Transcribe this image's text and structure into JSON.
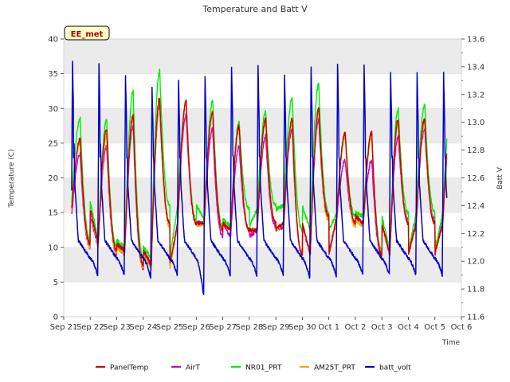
{
  "chart_data": {
    "type": "line",
    "title": "Temperature and Batt V",
    "xlabel": "Time",
    "ylabel": "Temperature (C)",
    "y2label": "Batt V",
    "badge": "EE_met",
    "xlim": [
      0,
      15
    ],
    "ylim": [
      0,
      40
    ],
    "y2lim": [
      11.6,
      13.6
    ],
    "x_tick_labels": [
      "Sep 21",
      "Sep 22",
      "Sep 23",
      "Sep 24",
      "Sep 25",
      "Sep 26",
      "Sep 27",
      "Sep 28",
      "Sep 29",
      "Sep 30",
      "Oct 1",
      "Oct 2",
      "Oct 3",
      "Oct 4",
      "Oct 5",
      "Oct 6"
    ],
    "y_ticks": [
      0,
      5,
      10,
      15,
      20,
      25,
      30,
      35,
      40
    ],
    "y2_ticks": [
      11.6,
      11.8,
      12.0,
      12.2,
      12.4,
      12.6,
      12.8,
      13.0,
      13.2,
      13.4,
      13.6
    ],
    "days": [
      "Sep 21",
      "Sep 22",
      "Sep 23",
      "Sep 24",
      "Sep 25",
      "Sep 26",
      "Sep 27",
      "Sep 28",
      "Sep 29",
      "Sep 30",
      "Oct 1",
      "Oct 2",
      "Oct 3",
      "Oct 4"
    ],
    "series": [
      {
        "name": "PanelTemp",
        "color": "#cc0000",
        "axis": "left",
        "daily_max": [
          25.5,
          27.0,
          29.0,
          31.5,
          31.0,
          29.5,
          27.5,
          28.5,
          28.5,
          30.0,
          26.5,
          26.5,
          28.5,
          28.5
        ],
        "daily_min": [
          15.5,
          10.5,
          9.5,
          7.5,
          13.5,
          13.5,
          12.5,
          12.5,
          13.5,
          9.0,
          14.5,
          13.5,
          9.0,
          13.5
        ]
      },
      {
        "name": "AirT",
        "color": "#cc00cc",
        "axis": "left",
        "daily_max": [
          23.5,
          24.5,
          27.5,
          30.5,
          29.0,
          27.0,
          24.5,
          26.0,
          27.0,
          28.5,
          22.5,
          22.5,
          26.0,
          27.0
        ],
        "daily_min": [
          14.5,
          10.0,
          9.0,
          7.0,
          13.5,
          13.5,
          11.5,
          12.5,
          13.0,
          9.0,
          14.0,
          13.5,
          9.0,
          14.0
        ]
      },
      {
        "name": "NR01_PRT",
        "color": "#00ee00",
        "axis": "left",
        "daily_max": [
          28.5,
          28.5,
          32.5,
          35.5,
          31.0,
          31.0,
          28.0,
          29.5,
          31.5,
          33.5,
          26.5,
          26.5,
          30.0,
          30.5
        ],
        "daily_min": [
          16.5,
          11.0,
          10.0,
          8.5,
          16.0,
          14.0,
          13.0,
          15.5,
          16.0,
          12.5,
          15.0,
          14.5,
          9.5,
          15.0
        ]
      },
      {
        "name": "AM25T_PRT",
        "color": "#ffa500",
        "axis": "left",
        "daily_max": [
          25.0,
          26.0,
          29.0,
          31.0,
          31.0,
          29.5,
          27.0,
          28.0,
          28.0,
          29.5,
          26.0,
          26.0,
          28.0,
          28.0
        ],
        "daily_min": [
          15.5,
          10.0,
          9.0,
          7.0,
          13.0,
          13.5,
          12.5,
          12.5,
          13.5,
          9.0,
          14.0,
          13.0,
          9.0,
          13.5
        ]
      },
      {
        "name": "batt_volt",
        "color": "#0000cc",
        "axis": "right",
        "daily_max": [
          13.45,
          13.42,
          13.33,
          13.25,
          13.3,
          13.33,
          13.4,
          13.4,
          13.34,
          13.4,
          13.42,
          13.42,
          13.35,
          13.35
        ],
        "daily_min": [
          11.89,
          11.9,
          11.9,
          11.88,
          11.9,
          11.75,
          11.9,
          11.9,
          11.9,
          11.88,
          11.89,
          11.9,
          11.9,
          11.9
        ]
      }
    ],
    "legend_position": "bottom"
  }
}
